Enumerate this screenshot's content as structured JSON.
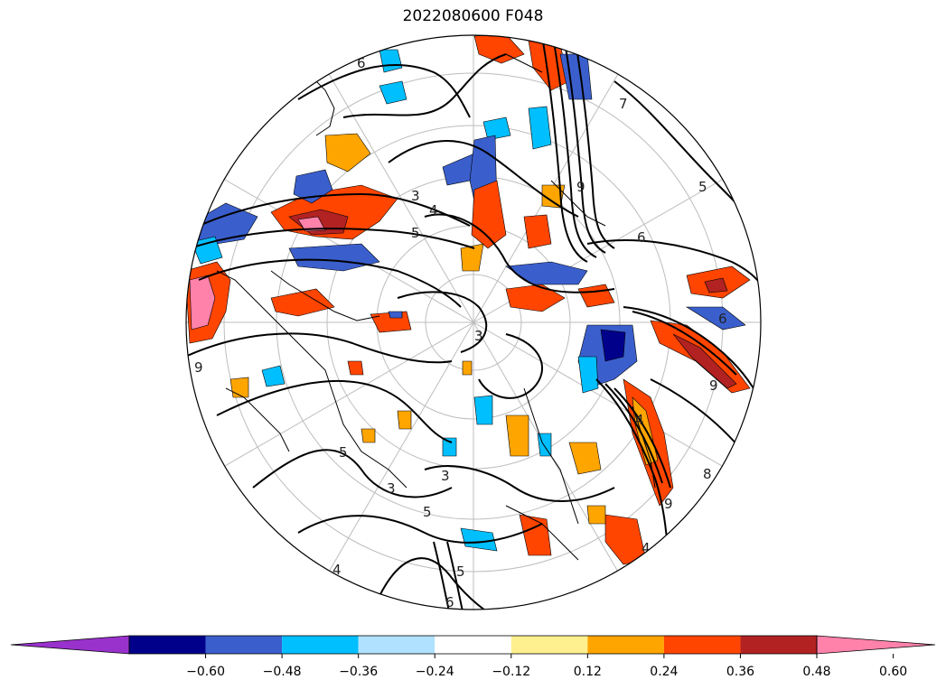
{
  "title": "2022080600 F048",
  "colorbar": {
    "colors": [
      "#9932cc",
      "#00008b",
      "#3a5fcd",
      "#00bfff",
      "#b0e2ff",
      "#ffffff",
      "#fff08f",
      "#ffa500",
      "#ff4500",
      "#b22222",
      "#ff82ab"
    ],
    "tick_labels": [
      "−0.60",
      "−0.48",
      "−0.36",
      "−0.24",
      "−0.12",
      "0.12",
      "0.24",
      "0.36",
      "0.48",
      "0.60"
    ],
    "extend": "both"
  },
  "map": {
    "projection": "north polar stereographic",
    "contour_labels": [
      "6",
      "3",
      "4",
      "5",
      "7",
      "3",
      "9",
      "6",
      "5",
      "3",
      "9",
      "4",
      "8",
      "5",
      "5",
      "3",
      "5",
      "6",
      "9",
      "4",
      "6",
      "4",
      "9"
    ]
  }
}
